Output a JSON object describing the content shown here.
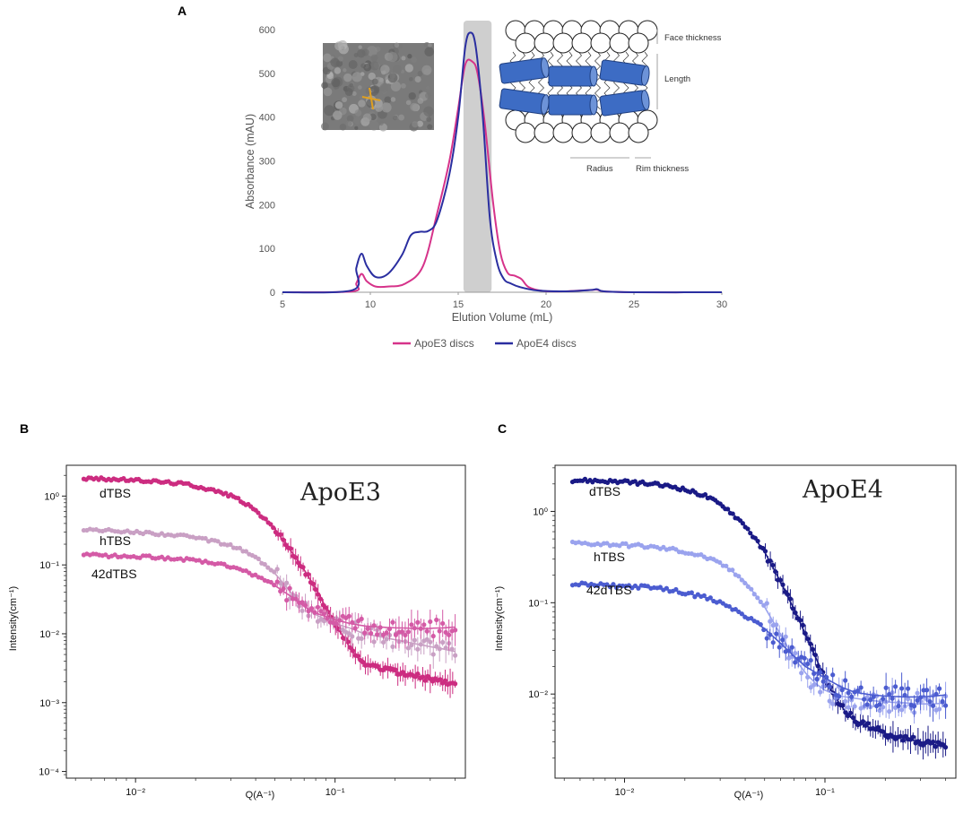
{
  "figure_labels": {
    "a": "A",
    "b": "B",
    "c": "C"
  },
  "colors": {
    "apoe3": "#d6338a",
    "apoe4": "#2a2ea0",
    "e3_dtbs": "#cc2c80",
    "e3_htbs": "#c9a0c4",
    "e3_42": "#d45aa6",
    "e4_dtbs": "#1a1a86",
    "e4_htbs": "#9aa3ee",
    "e4_42": "#4b5cd0",
    "shade": "#cfcfcf",
    "disc_blue": "#3d6cc4"
  },
  "schematic": {
    "face_thickness": "Face thickness",
    "length": "Length",
    "radius": "Radius",
    "rim_thickness": "Rim thickness"
  },
  "micrograph": {
    "icon": "tem-micrograph-image"
  },
  "chart_data": [
    {
      "id": "A",
      "type": "line",
      "title": "",
      "xlabel": "Elution Volume (mL)",
      "ylabel": "Absorbance (mAU)",
      "xlim": [
        5,
        30
      ],
      "ylim": [
        0,
        600
      ],
      "xticks": [
        5,
        10,
        15,
        20,
        25,
        30
      ],
      "yticks": [
        0,
        100,
        200,
        300,
        400,
        500,
        600
      ],
      "shaded_region": [
        15.3,
        16.9
      ],
      "legend": [
        "ApoE3 discs",
        "ApoE4 discs"
      ],
      "series": [
        {
          "name": "ApoE3 discs",
          "x": [
            5,
            9.0,
            9.2,
            9.5,
            9.8,
            10.3,
            11.0,
            12.0,
            13.0,
            13.8,
            14.5,
            15.0,
            15.4,
            15.8,
            16.1,
            16.5,
            17.0,
            17.4,
            17.8,
            18.2,
            18.6,
            19.0,
            19.8,
            21.0,
            22.5,
            22.9,
            23.3,
            25,
            30
          ],
          "y": [
            0,
            2,
            20,
            42,
            25,
            13,
            13,
            20,
            60,
            180,
            300,
            420,
            520,
            527,
            500,
            390,
            200,
            90,
            45,
            38,
            30,
            12,
            3,
            2,
            5,
            6,
            2,
            0,
            0
          ]
        },
        {
          "name": "ApoE4 discs",
          "x": [
            5,
            9.0,
            9.2,
            9.5,
            9.8,
            10.3,
            11.0,
            11.8,
            12.3,
            12.8,
            13.3,
            13.8,
            14.5,
            15.0,
            15.4,
            15.7,
            16.0,
            16.4,
            16.8,
            17.2,
            17.6,
            18.0,
            18.5,
            19.5,
            21.0,
            22.5,
            22.9,
            23.3,
            25,
            30
          ],
          "y": [
            0,
            5,
            55,
            88,
            60,
            35,
            42,
            85,
            130,
            138,
            140,
            165,
            270,
            400,
            560,
            593,
            560,
            400,
            170,
            70,
            30,
            20,
            12,
            4,
            2,
            5,
            7,
            2,
            0,
            0
          ]
        }
      ]
    },
    {
      "id": "B",
      "type": "scatter",
      "title": "ApoE3",
      "xlabel": "Q(A⁻¹)",
      "ylabel": "Intensity(cm⁻¹)",
      "xscale": "log",
      "yscale": "log",
      "xlim": [
        0.0045,
        0.45
      ],
      "ylim": [
        8e-05,
        2.8
      ],
      "xticks": [
        {
          "value": 0.01,
          "label": "10⁻²"
        },
        {
          "value": 0.1,
          "label": "10⁻¹"
        }
      ],
      "yticks": [
        {
          "value": 0.0001,
          "label": "10⁻⁴"
        },
        {
          "value": 0.001,
          "label": "10⁻³"
        },
        {
          "value": 0.01,
          "label": "10⁻²"
        },
        {
          "value": 0.1,
          "label": "10⁻¹"
        },
        {
          "value": 1,
          "label": "10⁰"
        }
      ],
      "series": [
        {
          "name": "dTBS",
          "x": [
            0.0055,
            0.008,
            0.012,
            0.018,
            0.025,
            0.032,
            0.04,
            0.05,
            0.06,
            0.07,
            0.08,
            0.09,
            0.1,
            0.11,
            0.12,
            0.13,
            0.14,
            0.16,
            0.18,
            0.2,
            0.25,
            0.3,
            0.35,
            0.4
          ],
          "y": [
            1.8,
            1.75,
            1.65,
            1.5,
            1.2,
            0.95,
            0.62,
            0.33,
            0.16,
            0.085,
            0.045,
            0.024,
            0.014,
            0.009,
            0.006,
            0.0045,
            0.0038,
            0.0032,
            0.003,
            0.0028,
            0.0025,
            0.0022,
            0.002,
            0.0018
          ]
        },
        {
          "name": "hTBS",
          "x": [
            0.0055,
            0.008,
            0.012,
            0.018,
            0.025,
            0.032,
            0.04,
            0.05,
            0.06,
            0.07,
            0.08,
            0.09,
            0.1,
            0.12,
            0.14,
            0.17,
            0.2,
            0.25,
            0.3,
            0.35,
            0.4
          ],
          "y": [
            0.33,
            0.31,
            0.29,
            0.26,
            0.22,
            0.18,
            0.13,
            0.075,
            0.04,
            0.025,
            0.019,
            0.016,
            0.014,
            0.012,
            0.01,
            0.009,
            0.0082,
            0.0072,
            0.0065,
            0.006,
            0.0055
          ]
        },
        {
          "name": "42dTBS",
          "x": [
            0.0055,
            0.008,
            0.012,
            0.018,
            0.025,
            0.032,
            0.04,
            0.05,
            0.06,
            0.07,
            0.08,
            0.1,
            0.12,
            0.14,
            0.17,
            0.2,
            0.25,
            0.3,
            0.35,
            0.4
          ],
          "y": [
            0.14,
            0.135,
            0.13,
            0.12,
            0.105,
            0.09,
            0.07,
            0.05,
            0.035,
            0.025,
            0.02,
            0.016,
            0.014,
            0.013,
            0.0125,
            0.0122,
            0.012,
            0.012,
            0.0122,
            0.0125
          ]
        }
      ]
    },
    {
      "id": "C",
      "type": "scatter",
      "title": "ApoE4",
      "xlabel": "Q(A⁻¹)",
      "ylabel": "Intensity(cm⁻¹)",
      "xscale": "log",
      "yscale": "log",
      "xlim": [
        0.0045,
        0.45
      ],
      "ylim": [
        0.0012,
        3.2
      ],
      "xticks": [
        {
          "value": 0.01,
          "label": "10⁻²"
        },
        {
          "value": 0.1,
          "label": "10⁻¹"
        }
      ],
      "yticks": [
        {
          "value": 0.01,
          "label": "10⁻²"
        },
        {
          "value": 0.1,
          "label": "10⁻¹"
        },
        {
          "value": 1,
          "label": "10⁰"
        }
      ],
      "series": [
        {
          "name": "dTBS",
          "x": [
            0.0055,
            0.008,
            0.012,
            0.018,
            0.025,
            0.032,
            0.04,
            0.05,
            0.06,
            0.07,
            0.08,
            0.09,
            0.1,
            0.11,
            0.12,
            0.13,
            0.14,
            0.16,
            0.18,
            0.2,
            0.25,
            0.3,
            0.35,
            0.4
          ],
          "y": [
            2.2,
            2.15,
            2.05,
            1.85,
            1.5,
            1.1,
            0.7,
            0.36,
            0.17,
            0.085,
            0.045,
            0.025,
            0.015,
            0.01,
            0.0075,
            0.006,
            0.0052,
            0.0045,
            0.004,
            0.0037,
            0.0033,
            0.003,
            0.0028,
            0.0026
          ]
        },
        {
          "name": "hTBS",
          "x": [
            0.0055,
            0.008,
            0.012,
            0.018,
            0.025,
            0.032,
            0.04,
            0.05,
            0.06,
            0.07,
            0.08,
            0.09,
            0.1,
            0.12,
            0.14,
            0.17,
            0.2,
            0.25,
            0.3,
            0.35,
            0.4
          ],
          "y": [
            0.45,
            0.44,
            0.42,
            0.38,
            0.32,
            0.25,
            0.17,
            0.09,
            0.045,
            0.025,
            0.017,
            0.013,
            0.011,
            0.0095,
            0.009,
            0.0085,
            0.0082,
            0.008,
            0.0078,
            0.0078,
            0.008
          ]
        },
        {
          "name": "42dTBS",
          "x": [
            0.0055,
            0.008,
            0.012,
            0.018,
            0.025,
            0.032,
            0.04,
            0.05,
            0.06,
            0.07,
            0.08,
            0.1,
            0.12,
            0.14,
            0.17,
            0.2,
            0.25,
            0.3,
            0.35,
            0.4
          ],
          "y": [
            0.16,
            0.155,
            0.15,
            0.135,
            0.115,
            0.095,
            0.072,
            0.052,
            0.036,
            0.026,
            0.02,
            0.015,
            0.012,
            0.0105,
            0.0098,
            0.0095,
            0.0093,
            0.0093,
            0.0095,
            0.0098
          ]
        }
      ]
    }
  ]
}
